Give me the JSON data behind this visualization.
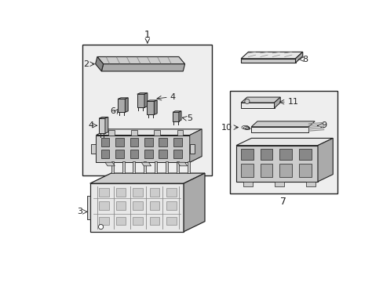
{
  "bg": "#ffffff",
  "lc": "#222222",
  "gray1": "#aaaaaa",
  "gray2": "#cccccc",
  "gray3": "#e8e8e8",
  "gray4": "#888888",
  "box_fill": "#eeeeee",
  "figsize": [
    4.89,
    3.6
  ],
  "dpi": 100
}
